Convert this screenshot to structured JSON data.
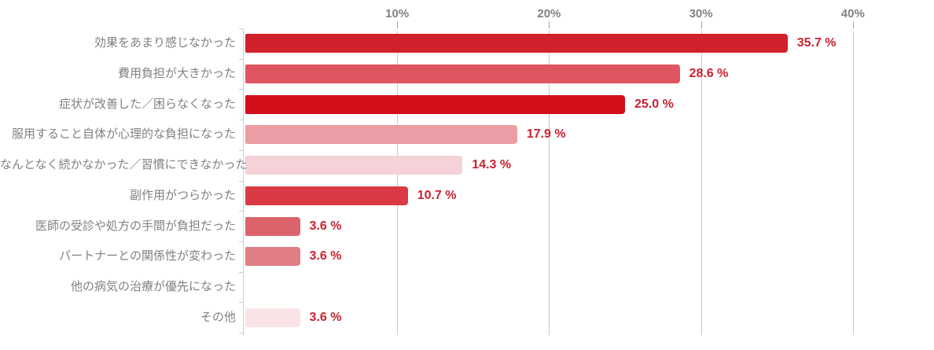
{
  "chart_data": {
    "type": "bar",
    "orientation": "horizontal",
    "title": "",
    "xlabel": "",
    "ylabel": "",
    "xlim": [
      0,
      44.7
    ],
    "grid": "vertical-only",
    "legend": "none",
    "categories": [
      "効果をあまり感じなかった",
      "費用負担が大きかった",
      "症状が改善した／困らなくなった",
      "服用すること自体が心理的な負担になった",
      "なんとなく続かなかった／習慣にできなかった",
      "副作用がつらかった",
      "医師の受診や処方の手間が負担だった",
      "パートナーとの関係性が変わった",
      "他の病気の治療が優先になった",
      "その他"
    ],
    "values": [
      35.7,
      28.6,
      25.0,
      17.9,
      14.3,
      10.7,
      3.6,
      3.6,
      0,
      3.6
    ],
    "value_labels": [
      "35.7 %",
      "28.6 %",
      "25.0 %",
      "17.9 %",
      "14.3 %",
      "10.7 %",
      "3.6 %",
      "3.6 %",
      "",
      "3.6 %"
    ],
    "bar_colors": [
      "#d0212d",
      "#df5560",
      "#d40d1b",
      "#ec9ca4",
      "#f5d2d7",
      "#da3a43",
      "#dc636c",
      "#e07d85",
      "#ffffff",
      "#fae3e6"
    ],
    "x_ticks": [
      {
        "value": 10,
        "label": "10%"
      },
      {
        "value": 20,
        "label": "20%"
      },
      {
        "value": 30,
        "label": "30%"
      },
      {
        "value": 40,
        "label": "40%"
      }
    ],
    "colors": {
      "value_label": "#c9222f",
      "tick_label": "#808080",
      "category_label": "#818181",
      "gridline": "#c9c9c9",
      "axis_line": "#c6d2de",
      "background": "#ffffff"
    }
  }
}
